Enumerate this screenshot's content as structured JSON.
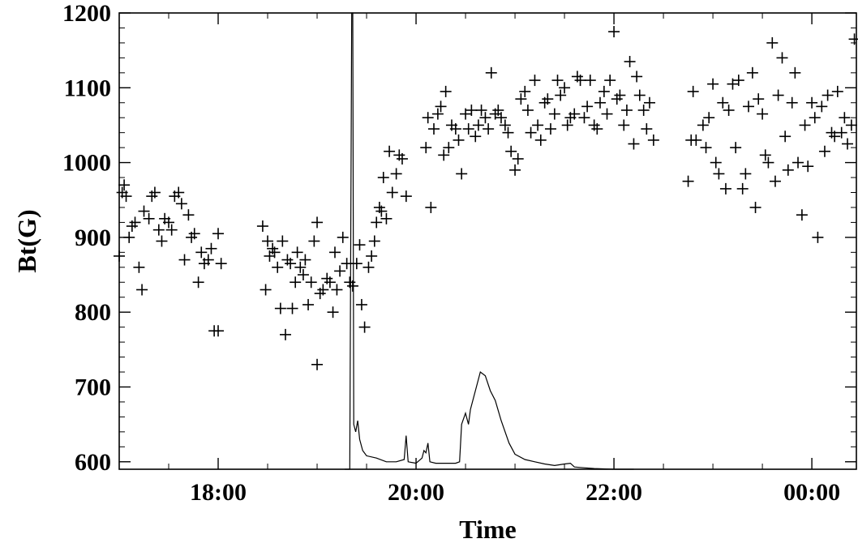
{
  "chart_data": {
    "type": "scatter",
    "title": "",
    "xlabel": "Time",
    "ylabel": "Bt(G)",
    "x_unit": "hours",
    "xlim": [
      17.0,
      24.45
    ],
    "ylim": [
      590,
      1200
    ],
    "grid": false,
    "legend": "none",
    "x_ticks": [
      {
        "value": 18,
        "label": "18:00"
      },
      {
        "value": 20,
        "label": "20:00"
      },
      {
        "value": 22,
        "label": "22:00"
      },
      {
        "value": 24,
        "label": "00:00"
      }
    ],
    "y_ticks": [
      600,
      700,
      800,
      900,
      1000,
      1100,
      1200
    ],
    "series": [
      {
        "kind": "scatter",
        "marker": "plus",
        "color": "#000000",
        "points": [
          [
            17.0,
            875
          ],
          [
            17.03,
            960
          ],
          [
            17.05,
            970
          ],
          [
            17.07,
            955
          ],
          [
            17.1,
            900
          ],
          [
            17.13,
            915
          ],
          [
            17.16,
            920
          ],
          [
            17.2,
            860
          ],
          [
            17.23,
            830
          ],
          [
            17.25,
            935
          ],
          [
            17.3,
            925
          ],
          [
            17.33,
            955
          ],
          [
            17.36,
            960
          ],
          [
            17.4,
            910
          ],
          [
            17.43,
            895
          ],
          [
            17.46,
            925
          ],
          [
            17.5,
            920
          ],
          [
            17.53,
            910
          ],
          [
            17.56,
            955
          ],
          [
            17.6,
            960
          ],
          [
            17.63,
            945
          ],
          [
            17.66,
            870
          ],
          [
            17.7,
            930
          ],
          [
            17.73,
            900
          ],
          [
            17.76,
            905
          ],
          [
            17.8,
            840
          ],
          [
            17.83,
            880
          ],
          [
            17.86,
            865
          ],
          [
            17.9,
            870
          ],
          [
            17.93,
            885
          ],
          [
            17.96,
            775
          ],
          [
            18.0,
            775
          ],
          [
            18.0,
            905
          ],
          [
            18.03,
            865
          ],
          [
            18.45,
            915
          ],
          [
            18.48,
            830
          ],
          [
            18.5,
            895
          ],
          [
            18.52,
            875
          ],
          [
            18.55,
            885
          ],
          [
            18.57,
            880
          ],
          [
            18.6,
            860
          ],
          [
            18.63,
            805
          ],
          [
            18.65,
            895
          ],
          [
            18.68,
            770
          ],
          [
            18.7,
            870
          ],
          [
            18.73,
            865
          ],
          [
            18.75,
            805
          ],
          [
            18.78,
            840
          ],
          [
            18.8,
            880
          ],
          [
            18.83,
            860
          ],
          [
            18.86,
            850
          ],
          [
            18.88,
            870
          ],
          [
            18.91,
            810
          ],
          [
            18.94,
            840
          ],
          [
            18.97,
            895
          ],
          [
            19.0,
            730
          ],
          [
            19.0,
            920
          ],
          [
            19.03,
            825
          ],
          [
            19.06,
            830
          ],
          [
            19.1,
            845
          ],
          [
            19.13,
            840
          ],
          [
            19.16,
            800
          ],
          [
            19.18,
            880
          ],
          [
            19.2,
            830
          ],
          [
            19.23,
            855
          ],
          [
            19.26,
            900
          ],
          [
            19.3,
            865
          ],
          [
            19.33,
            840
          ],
          [
            19.36,
            835
          ],
          [
            19.4,
            865
          ],
          [
            19.43,
            890
          ],
          [
            19.45,
            810
          ],
          [
            19.48,
            780
          ],
          [
            19.52,
            860
          ],
          [
            19.55,
            875
          ],
          [
            19.58,
            895
          ],
          [
            19.6,
            920
          ],
          [
            19.63,
            940
          ],
          [
            19.65,
            935
          ],
          [
            19.67,
            980
          ],
          [
            19.7,
            925
          ],
          [
            19.73,
            1015
          ],
          [
            19.76,
            960
          ],
          [
            19.8,
            985
          ],
          [
            19.83,
            1010
          ],
          [
            19.86,
            1005
          ],
          [
            19.9,
            955
          ],
          [
            20.1,
            1020
          ],
          [
            20.12,
            1060
          ],
          [
            20.15,
            940
          ],
          [
            20.18,
            1045
          ],
          [
            20.22,
            1065
          ],
          [
            20.25,
            1075
          ],
          [
            20.28,
            1010
          ],
          [
            20.3,
            1095
          ],
          [
            20.33,
            1020
          ],
          [
            20.36,
            1050
          ],
          [
            20.4,
            1045
          ],
          [
            20.43,
            1030
          ],
          [
            20.46,
            985
          ],
          [
            20.5,
            1065
          ],
          [
            20.53,
            1045
          ],
          [
            20.56,
            1070
          ],
          [
            20.6,
            1035
          ],
          [
            20.63,
            1050
          ],
          [
            20.66,
            1070
          ],
          [
            20.7,
            1060
          ],
          [
            20.73,
            1045
          ],
          [
            20.76,
            1120
          ],
          [
            20.8,
            1065
          ],
          [
            20.83,
            1070
          ],
          [
            20.86,
            1060
          ],
          [
            20.9,
            1050
          ],
          [
            20.93,
            1040
          ],
          [
            20.96,
            1015
          ],
          [
            21.0,
            990
          ],
          [
            21.03,
            1005
          ],
          [
            21.06,
            1085
          ],
          [
            21.1,
            1095
          ],
          [
            21.13,
            1070
          ],
          [
            21.16,
            1040
          ],
          [
            21.2,
            1110
          ],
          [
            21.23,
            1050
          ],
          [
            21.26,
            1030
          ],
          [
            21.3,
            1080
          ],
          [
            21.33,
            1085
          ],
          [
            21.36,
            1045
          ],
          [
            21.4,
            1065
          ],
          [
            21.43,
            1110
          ],
          [
            21.46,
            1090
          ],
          [
            21.5,
            1100
          ],
          [
            21.53,
            1050
          ],
          [
            21.56,
            1060
          ],
          [
            21.6,
            1065
          ],
          [
            21.63,
            1115
          ],
          [
            21.66,
            1110
          ],
          [
            21.7,
            1060
          ],
          [
            21.73,
            1075
          ],
          [
            21.76,
            1110
          ],
          [
            21.8,
            1050
          ],
          [
            21.83,
            1045
          ],
          [
            21.86,
            1080
          ],
          [
            21.9,
            1095
          ],
          [
            21.93,
            1065
          ],
          [
            21.96,
            1110
          ],
          [
            22.0,
            1175
          ],
          [
            22.03,
            1085
          ],
          [
            22.06,
            1090
          ],
          [
            22.1,
            1050
          ],
          [
            22.13,
            1070
          ],
          [
            22.16,
            1135
          ],
          [
            22.2,
            1025
          ],
          [
            22.23,
            1115
          ],
          [
            22.26,
            1090
          ],
          [
            22.3,
            1070
          ],
          [
            22.33,
            1045
          ],
          [
            22.36,
            1080
          ],
          [
            22.4,
            1030
          ],
          [
            22.75,
            975
          ],
          [
            22.78,
            1030
          ],
          [
            22.8,
            1095
          ],
          [
            22.83,
            1030
          ],
          [
            22.9,
            1050
          ],
          [
            22.93,
            1020
          ],
          [
            22.96,
            1060
          ],
          [
            23.0,
            1105
          ],
          [
            23.03,
            1000
          ],
          [
            23.06,
            985
          ],
          [
            23.1,
            1080
          ],
          [
            23.13,
            965
          ],
          [
            23.16,
            1070
          ],
          [
            23.2,
            1105
          ],
          [
            23.23,
            1020
          ],
          [
            23.26,
            1110
          ],
          [
            23.3,
            965
          ],
          [
            23.33,
            985
          ],
          [
            23.36,
            1075
          ],
          [
            23.4,
            1120
          ],
          [
            23.43,
            940
          ],
          [
            23.46,
            1085
          ],
          [
            23.5,
            1065
          ],
          [
            23.53,
            1010
          ],
          [
            23.56,
            1000
          ],
          [
            23.6,
            1160
          ],
          [
            23.63,
            975
          ],
          [
            23.66,
            1090
          ],
          [
            23.7,
            1140
          ],
          [
            23.73,
            1035
          ],
          [
            23.76,
            990
          ],
          [
            23.8,
            1080
          ],
          [
            23.83,
            1120
          ],
          [
            23.86,
            1000
          ],
          [
            23.9,
            930
          ],
          [
            23.93,
            1050
          ],
          [
            23.96,
            995
          ],
          [
            24.0,
            1080
          ],
          [
            24.03,
            1060
          ],
          [
            24.06,
            900
          ],
          [
            24.1,
            1075
          ],
          [
            24.13,
            1015
          ],
          [
            24.16,
            1090
          ],
          [
            24.2,
            1040
          ],
          [
            24.23,
            1035
          ],
          [
            24.26,
            1095
          ],
          [
            24.3,
            1040
          ],
          [
            24.33,
            1060
          ],
          [
            24.36,
            1025
          ],
          [
            24.4,
            1050
          ],
          [
            24.43,
            1165
          ]
        ]
      },
      {
        "kind": "line",
        "color": "#000000",
        "points": [
          [
            19.28,
            590
          ],
          [
            19.3,
            590
          ],
          [
            19.33,
            590
          ],
          [
            19.35,
            1200
          ],
          [
            19.36,
            1200
          ],
          [
            19.37,
            650
          ],
          [
            19.39,
            640
          ],
          [
            19.41,
            655
          ],
          [
            19.43,
            630
          ],
          [
            19.46,
            615
          ],
          [
            19.5,
            608
          ],
          [
            19.6,
            605
          ],
          [
            19.7,
            600
          ],
          [
            19.8,
            600
          ],
          [
            19.88,
            603
          ],
          [
            19.9,
            635
          ],
          [
            19.92,
            600
          ],
          [
            20.0,
            598
          ],
          [
            20.06,
            605
          ],
          [
            20.08,
            615
          ],
          [
            20.1,
            612
          ],
          [
            20.12,
            625
          ],
          [
            20.14,
            600
          ],
          [
            20.2,
            598
          ],
          [
            20.3,
            598
          ],
          [
            20.4,
            598
          ],
          [
            20.44,
            600
          ],
          [
            20.46,
            650
          ],
          [
            20.5,
            665
          ],
          [
            20.53,
            650
          ],
          [
            20.55,
            670
          ],
          [
            20.6,
            695
          ],
          [
            20.65,
            720
          ],
          [
            20.7,
            715
          ],
          [
            20.75,
            695
          ],
          [
            20.8,
            682
          ],
          [
            20.86,
            655
          ],
          [
            20.94,
            625
          ],
          [
            21.0,
            610
          ],
          [
            21.1,
            603
          ],
          [
            21.2,
            600
          ],
          [
            21.3,
            597
          ],
          [
            21.4,
            595
          ],
          [
            21.5,
            597
          ],
          [
            21.56,
            598
          ],
          [
            21.6,
            593
          ],
          [
            21.7,
            592
          ],
          [
            21.8,
            591
          ],
          [
            22.0,
            590
          ],
          [
            22.2,
            590
          ]
        ]
      }
    ]
  }
}
